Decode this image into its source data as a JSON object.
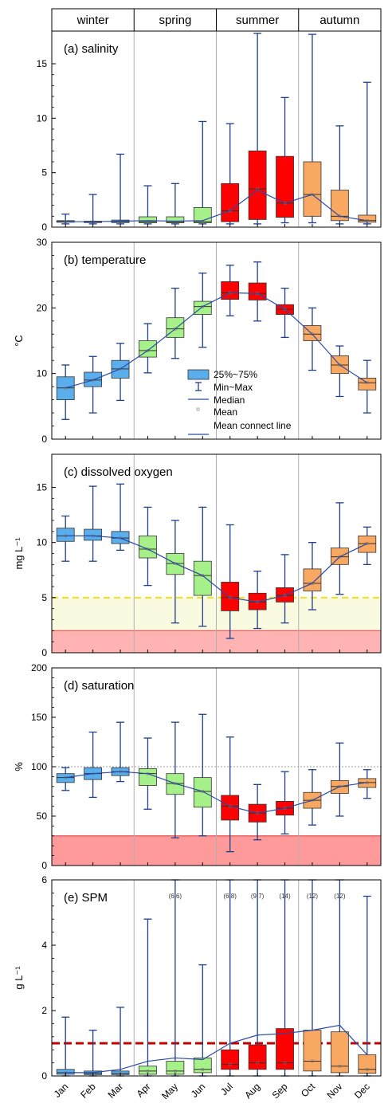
{
  "seasons": [
    {
      "label": "winter",
      "months": [
        0,
        2
      ]
    },
    {
      "label": "spring",
      "months": [
        3,
        5
      ]
    },
    {
      "label": "summer",
      "months": [
        6,
        8
      ]
    },
    {
      "label": "autumn",
      "months": [
        9,
        11
      ]
    }
  ],
  "months": [
    "Jan",
    "Feb",
    "Mar",
    "Apr",
    "May",
    "Jun",
    "Jul",
    "Aug",
    "Sep",
    "Oct",
    "Nov",
    "Dec"
  ],
  "colors": {
    "winter": "#5aaeec",
    "spring": "#a6f08a",
    "summer": "#ff0000",
    "autumn": "#f8a860",
    "whisker": "#1f3f8a",
    "line": "#2a4aa8",
    "divider": "#b0b0b0"
  },
  "legend": {
    "items": [
      "25%~75%",
      "Min~Max",
      "Median",
      "Mean",
      "Mean connect line"
    ]
  },
  "chart_data": [
    {
      "type": "box",
      "title": "(a) salinity",
      "ylabel": "",
      "ylim": [
        0,
        18
      ],
      "yticks": [
        0,
        5,
        10,
        15
      ],
      "boxes": [
        {
          "month": "Jan",
          "min": 0.3,
          "q1": 0.45,
          "median": 0.5,
          "q3": 0.6,
          "max": 1.2
        },
        {
          "month": "Feb",
          "min": 0.3,
          "q1": 0.42,
          "median": 0.48,
          "q3": 0.55,
          "max": 3.0
        },
        {
          "month": "Mar",
          "min": 0.3,
          "q1": 0.42,
          "median": 0.5,
          "q3": 0.65,
          "max": 6.7
        },
        {
          "month": "Apr",
          "min": 0.3,
          "q1": 0.4,
          "median": 0.5,
          "q3": 0.95,
          "max": 3.8
        },
        {
          "month": "May",
          "min": 0.3,
          "q1": 0.4,
          "median": 0.45,
          "q3": 0.95,
          "max": 4.0
        },
        {
          "month": "Jun",
          "min": 0.3,
          "q1": 0.4,
          "median": 0.5,
          "q3": 1.8,
          "max": 9.7
        },
        {
          "month": "Jul",
          "min": 0.3,
          "q1": 0.5,
          "median": 1.5,
          "q3": 4.0,
          "max": 9.5
        },
        {
          "month": "Aug",
          "min": 0.3,
          "q1": 0.7,
          "median": 3.5,
          "q3": 7.0,
          "max": 17.8
        },
        {
          "month": "Sep",
          "min": 0.4,
          "q1": 0.9,
          "median": 2.2,
          "q3": 6.5,
          "max": 11.9
        },
        {
          "month": "Oct",
          "min": 0.4,
          "q1": 1.0,
          "median": 3.0,
          "q3": 6.0,
          "max": 17.7
        },
        {
          "month": "Nov",
          "min": 0.3,
          "q1": 0.6,
          "median": 1.0,
          "q3": 3.4,
          "max": 9.3
        },
        {
          "month": "Dec",
          "min": 0.3,
          "q1": 0.45,
          "median": 0.6,
          "q3": 1.1,
          "max": 13.3
        }
      ],
      "mean_line": [
        0.5,
        0.5,
        0.55,
        0.6,
        0.55,
        0.6,
        1.5,
        3.4,
        2.2,
        3.0,
        1.0,
        0.6
      ],
      "reference_lines": [],
      "bands": [],
      "annotations": []
    },
    {
      "type": "box",
      "title": "(b) temperature",
      "ylabel": "°C",
      "ylim": [
        0,
        30
      ],
      "yticks": [
        0,
        10,
        20,
        30
      ],
      "boxes": [
        {
          "month": "Jan",
          "min": 3.0,
          "q1": 6.0,
          "median": 7.8,
          "q3": 9.5,
          "max": 11.3
        },
        {
          "month": "Feb",
          "min": 4.0,
          "q1": 8.0,
          "median": 9.0,
          "q3": 10.2,
          "max": 12.6
        },
        {
          "month": "Mar",
          "min": 5.9,
          "q1": 9.3,
          "median": 10.7,
          "q3": 12.0,
          "max": 14.6
        },
        {
          "month": "Apr",
          "min": 10.1,
          "q1": 12.5,
          "median": 13.5,
          "q3": 15.0,
          "max": 17.6
        },
        {
          "month": "May",
          "min": 12.3,
          "q1": 15.5,
          "median": 16.8,
          "q3": 18.5,
          "max": 23.0
        },
        {
          "month": "Jun",
          "min": 14.0,
          "q1": 19.0,
          "median": 20.2,
          "q3": 21.0,
          "max": 25.3
        },
        {
          "month": "Jul",
          "min": 18.8,
          "q1": 21.3,
          "median": 22.3,
          "q3": 24.0,
          "max": 26.5
        },
        {
          "month": "Aug",
          "min": 18.0,
          "q1": 21.2,
          "median": 22.2,
          "q3": 23.8,
          "max": 27.0
        },
        {
          "month": "Sep",
          "min": 15.5,
          "q1": 19.0,
          "median": 19.8,
          "q3": 20.5,
          "max": 23.0
        },
        {
          "month": "Oct",
          "min": 10.5,
          "q1": 15.0,
          "median": 16.0,
          "q3": 17.3,
          "max": 20.0
        },
        {
          "month": "Nov",
          "min": 6.5,
          "q1": 10.0,
          "median": 11.3,
          "q3": 12.7,
          "max": 14.2
        },
        {
          "month": "Dec",
          "min": 4.0,
          "q1": 7.5,
          "median": 8.6,
          "q3": 9.3,
          "max": 12.0
        }
      ],
      "mean_line": [
        7.8,
        9.0,
        10.7,
        13.5,
        16.8,
        20.2,
        22.3,
        22.2,
        19.8,
        16.0,
        11.3,
        8.6
      ],
      "reference_lines": [],
      "bands": [],
      "annotations": []
    },
    {
      "type": "box",
      "title": "(c) dissolved oxygen",
      "ylabel": "mg L⁻¹",
      "ylim": [
        0,
        18
      ],
      "yticks": [
        0,
        5,
        10,
        15
      ],
      "boxes": [
        {
          "month": "Jan",
          "min": 8.3,
          "q1": 10.1,
          "median": 10.6,
          "q3": 11.3,
          "max": 12.4
        },
        {
          "month": "Feb",
          "min": 8.3,
          "q1": 10.2,
          "median": 10.6,
          "q3": 11.2,
          "max": 15.1
        },
        {
          "month": "Mar",
          "min": 9.3,
          "q1": 9.9,
          "median": 10.4,
          "q3": 11.0,
          "max": 15.3
        },
        {
          "month": "Apr",
          "min": 6.1,
          "q1": 8.6,
          "median": 9.4,
          "q3": 10.6,
          "max": 13.2
        },
        {
          "month": "May",
          "min": 2.7,
          "q1": 7.1,
          "median": 8.1,
          "q3": 9.0,
          "max": 12.0
        },
        {
          "month": "Jun",
          "min": 2.4,
          "q1": 5.2,
          "median": 7.0,
          "q3": 8.3,
          "max": 13.2
        },
        {
          "month": "Jul",
          "min": 1.3,
          "q1": 3.8,
          "median": 5.0,
          "q3": 6.4,
          "max": 11.6
        },
        {
          "month": "Aug",
          "min": 2.2,
          "q1": 3.9,
          "median": 4.6,
          "q3": 5.4,
          "max": 7.4
        },
        {
          "month": "Sep",
          "min": 2.7,
          "q1": 4.6,
          "median": 5.2,
          "q3": 5.9,
          "max": 8.9
        },
        {
          "month": "Oct",
          "min": 3.9,
          "q1": 5.6,
          "median": 6.3,
          "q3": 7.6,
          "max": 10.0
        },
        {
          "month": "Nov",
          "min": 5.3,
          "q1": 8.0,
          "median": 8.7,
          "q3": 9.5,
          "max": 13.6
        },
        {
          "month": "Dec",
          "min": 8.0,
          "q1": 9.1,
          "median": 9.9,
          "q3": 10.6,
          "max": 11.4
        }
      ],
      "mean_line": [
        10.6,
        10.6,
        10.4,
        9.4,
        8.1,
        7.0,
        5.0,
        4.6,
        5.2,
        6.3,
        8.7,
        9.9
      ],
      "reference_lines": [
        {
          "y": 5,
          "color": "#f2e020",
          "dash": true,
          "width": 2
        }
      ],
      "bands": [
        {
          "from": 2,
          "to": 5,
          "color": "#fafae0"
        },
        {
          "from": 0,
          "to": 2,
          "color": "#ffb3b3",
          "edge": "#e85050"
        }
      ],
      "annotations": []
    },
    {
      "type": "box",
      "title": "(d) saturation",
      "ylabel": "%",
      "ylim": [
        0,
        200
      ],
      "yticks": [
        0,
        50,
        100,
        150,
        200
      ],
      "boxes": [
        {
          "month": "Jan",
          "min": 76,
          "q1": 84,
          "median": 89,
          "q3": 93,
          "max": 99
        },
        {
          "month": "Feb",
          "min": 69,
          "q1": 87,
          "median": 93,
          "q3": 99,
          "max": 135
        },
        {
          "month": "Mar",
          "min": 85,
          "q1": 91,
          "median": 95,
          "q3": 99,
          "max": 145
        },
        {
          "month": "Apr",
          "min": 57,
          "q1": 81,
          "median": 93,
          "q3": 98,
          "max": 129
        },
        {
          "month": "May",
          "min": 28,
          "q1": 72,
          "median": 83,
          "q3": 93,
          "max": 145
        },
        {
          "month": "Jun",
          "min": 30,
          "q1": 59,
          "median": 75,
          "q3": 89,
          "max": 153
        },
        {
          "month": "Jul",
          "min": 14,
          "q1": 46,
          "median": 60,
          "q3": 71,
          "max": 130
        },
        {
          "month": "Aug",
          "min": 26,
          "q1": 44,
          "median": 53,
          "q3": 62,
          "max": 82
        },
        {
          "month": "Sep",
          "min": 32,
          "q1": 51,
          "median": 58,
          "q3": 65,
          "max": 95
        },
        {
          "month": "Oct",
          "min": 41,
          "q1": 58,
          "median": 66,
          "q3": 74,
          "max": 97
        },
        {
          "month": "Nov",
          "min": 50,
          "q1": 73,
          "median": 80,
          "q3": 86,
          "max": 124
        },
        {
          "month": "Dec",
          "min": 68,
          "q1": 79,
          "median": 84,
          "q3": 88,
          "max": 97
        }
      ],
      "mean_line": [
        89,
        93,
        95,
        93,
        83,
        75,
        60,
        53,
        58,
        66,
        80,
        84
      ],
      "reference_lines": [
        {
          "y": 100,
          "color": "#999999",
          "dash": "dot",
          "width": 1
        }
      ],
      "bands": [
        {
          "from": 0,
          "to": 30,
          "color": "#ff9a9a",
          "edge": "#e04040"
        }
      ],
      "annotations": []
    },
    {
      "type": "box",
      "title": "(e) SPM",
      "ylabel": "g L⁻¹",
      "ylim": [
        0,
        6
      ],
      "yticks": [
        0,
        2,
        4,
        6
      ],
      "boxes": [
        {
          "month": "Jan",
          "min": 0.0,
          "q1": 0.05,
          "median": 0.1,
          "q3": 0.2,
          "max": 1.8
        },
        {
          "month": "Feb",
          "min": 0.0,
          "q1": 0.04,
          "median": 0.08,
          "q3": 0.15,
          "max": 1.4
        },
        {
          "month": "Mar",
          "min": 0.0,
          "q1": 0.04,
          "median": 0.08,
          "q3": 0.15,
          "max": 2.1
        },
        {
          "month": "Apr",
          "min": 0.0,
          "q1": 0.05,
          "median": 0.15,
          "q3": 0.3,
          "max": 4.8
        },
        {
          "month": "May",
          "min": 0.0,
          "q1": 0.05,
          "median": 0.15,
          "q3": 0.45,
          "max": 6.0
        },
        {
          "month": "Jun",
          "min": 0.0,
          "q1": 0.1,
          "median": 0.2,
          "q3": 0.55,
          "max": 3.4
        },
        {
          "month": "Jul",
          "min": 0.0,
          "q1": 0.2,
          "median": 0.35,
          "q3": 0.8,
          "max": 6.0
        },
        {
          "month": "Aug",
          "min": 0.0,
          "q1": 0.2,
          "median": 0.4,
          "q3": 0.95,
          "max": 6.0
        },
        {
          "month": "Sep",
          "min": 0.0,
          "q1": 0.2,
          "median": 0.4,
          "q3": 1.45,
          "max": 6.0
        },
        {
          "month": "Oct",
          "min": 0.0,
          "q1": 0.15,
          "median": 0.45,
          "q3": 1.4,
          "max": 6.0
        },
        {
          "month": "Nov",
          "min": 0.0,
          "q1": 0.1,
          "median": 0.3,
          "q3": 1.35,
          "max": 6.0
        },
        {
          "month": "Dec",
          "min": 0.0,
          "q1": 0.08,
          "median": 0.2,
          "q3": 0.65,
          "max": 5.5
        }
      ],
      "mean_line": [
        0.1,
        0.1,
        0.2,
        0.45,
        0.55,
        0.5,
        1.0,
        1.25,
        1.3,
        1.4,
        1.55,
        0.65
      ],
      "reference_lines": [
        {
          "y": 1,
          "color": "#c00000",
          "dash": true,
          "width": 3
        }
      ],
      "bands": [],
      "annotations": [
        {
          "month": "May",
          "text": "(6.6)"
        },
        {
          "month": "Jul",
          "text": "(6.8)"
        },
        {
          "month": "Aug",
          "text": "(9.7)"
        },
        {
          "month": "Sep",
          "text": "(14)"
        },
        {
          "month": "Oct",
          "text": "(12)"
        },
        {
          "month": "Nov",
          "text": "(12)"
        }
      ]
    }
  ]
}
